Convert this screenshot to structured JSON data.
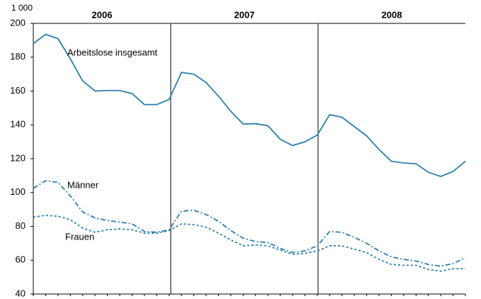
{
  "chart_data": {
    "type": "line",
    "unit_label": "1 000",
    "period_labels": [
      "2006",
      "2007",
      "2008"
    ],
    "categories": [
      null,
      null,
      null,
      null,
      null,
      null,
      null,
      null,
      null,
      null,
      null,
      null,
      null,
      null,
      null,
      null,
      null,
      null,
      null,
      null,
      null,
      null,
      null,
      null,
      null,
      null,
      null,
      null,
      null,
      null,
      null,
      null,
      null,
      null,
      null,
      null
    ],
    "ylim": [
      40,
      200
    ],
    "yticks": [
      40,
      60,
      80,
      100,
      120,
      140,
      160,
      180,
      200
    ],
    "series": [
      {
        "name": "Arbeitslose insgesamt",
        "color": "#2b7fab",
        "dash": "solid",
        "values": [
          188,
          193.5,
          191,
          179,
          166,
          160,
          160.3,
          160.3,
          158.5,
          152,
          152,
          155,
          171,
          170,
          165,
          157,
          148,
          140.5,
          140.7,
          139.5,
          131.5,
          127.8,
          130,
          134,
          146,
          144.5,
          139,
          133.5,
          125.5,
          118.5,
          117.5,
          117,
          112,
          109.5,
          112.5,
          118.5
        ]
      },
      {
        "name": "Männer",
        "color": "#2b7fab",
        "dash": "dashdot",
        "values": [
          102.5,
          107,
          106,
          98,
          88.5,
          85,
          83.5,
          82.5,
          81.5,
          77,
          76.5,
          78,
          89,
          89.5,
          87,
          83,
          77.5,
          73,
          71,
          70.5,
          67,
          64.5,
          65.5,
          68.5,
          77,
          76.5,
          73.5,
          70,
          65.5,
          62,
          60.5,
          59.5,
          57.5,
          56.5,
          58,
          61.5
        ]
      },
      {
        "name": "Frauen",
        "color": "#2b7fab",
        "dash": "dotted",
        "values": [
          85.5,
          86.5,
          86,
          84,
          79,
          76.5,
          78,
          78.5,
          78,
          76,
          76,
          77.5,
          81.5,
          81,
          79.5,
          76,
          72,
          68.5,
          69,
          68.5,
          66,
          63.5,
          64,
          65.5,
          68.5,
          68.5,
          66.5,
          64.5,
          60.5,
          57.5,
          57,
          57,
          54.5,
          53.5,
          55,
          55
        ]
      }
    ]
  }
}
